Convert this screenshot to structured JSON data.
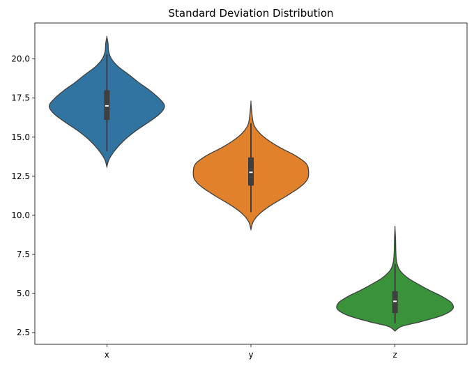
{
  "chart_data": {
    "type": "violin",
    "title": "Standard Deviation Distribution",
    "xlabel": "",
    "ylabel": "",
    "categories": [
      "x",
      "y",
      "z"
    ],
    "ylim": [
      1.75,
      22.3
    ],
    "yticks": [
      2.5,
      5.0,
      7.5,
      10.0,
      12.5,
      15.0,
      17.5,
      20.0
    ],
    "ytick_labels": [
      "2.5",
      "5.0",
      "7.5",
      "10.0",
      "12.5",
      "15.0",
      "17.5",
      "20.0"
    ],
    "grid": false,
    "legend": "none",
    "violins": [
      {
        "category": "x",
        "color": "#3274a1",
        "min": 13.1,
        "max": 21.4,
        "whisker_low": 14.1,
        "whisker_high": 20.3,
        "q1": 16.1,
        "median": 17.0,
        "q3": 18.0,
        "profile": [
          [
            13.1,
            0.0
          ],
          [
            13.6,
            0.04
          ],
          [
            14.2,
            0.15
          ],
          [
            14.8,
            0.3
          ],
          [
            15.4,
            0.5
          ],
          [
            16.0,
            0.74
          ],
          [
            16.5,
            0.92
          ],
          [
            17.0,
            1.0
          ],
          [
            17.5,
            0.9
          ],
          [
            18.0,
            0.74
          ],
          [
            18.5,
            0.55
          ],
          [
            19.0,
            0.38
          ],
          [
            19.5,
            0.2
          ],
          [
            20.0,
            0.08
          ],
          [
            20.5,
            0.03
          ],
          [
            21.0,
            0.02
          ],
          [
            21.4,
            0.0
          ]
        ]
      },
      {
        "category": "y",
        "color": "#e1812c",
        "min": 9.1,
        "max": 17.2,
        "whisker_low": 10.2,
        "whisker_high": 15.9,
        "q1": 11.9,
        "median": 12.75,
        "q3": 13.7,
        "profile": [
          [
            9.1,
            0.0
          ],
          [
            9.6,
            0.04
          ],
          [
            10.1,
            0.15
          ],
          [
            10.6,
            0.33
          ],
          [
            11.2,
            0.6
          ],
          [
            11.8,
            0.85
          ],
          [
            12.3,
            0.98
          ],
          [
            12.8,
            1.0
          ],
          [
            13.3,
            0.96
          ],
          [
            13.8,
            0.78
          ],
          [
            14.3,
            0.52
          ],
          [
            14.8,
            0.3
          ],
          [
            15.3,
            0.14
          ],
          [
            15.8,
            0.05
          ],
          [
            16.4,
            0.02
          ],
          [
            17.2,
            0.0
          ]
        ]
      },
      {
        "category": "z",
        "color": "#3a923a",
        "min": 2.6,
        "max": 9.2,
        "whisker_low": 3.1,
        "whisker_high": 6.9,
        "q1": 3.75,
        "median": 4.5,
        "q3": 5.15,
        "profile": [
          [
            2.6,
            0.0
          ],
          [
            2.9,
            0.12
          ],
          [
            3.2,
            0.45
          ],
          [
            3.6,
            0.82
          ],
          [
            4.0,
            1.0
          ],
          [
            4.4,
            0.98
          ],
          [
            4.8,
            0.82
          ],
          [
            5.2,
            0.6
          ],
          [
            5.6,
            0.4
          ],
          [
            6.0,
            0.22
          ],
          [
            6.5,
            0.08
          ],
          [
            7.0,
            0.03
          ],
          [
            7.6,
            0.015
          ],
          [
            8.4,
            0.01
          ],
          [
            9.2,
            0.0
          ]
        ]
      }
    ]
  }
}
